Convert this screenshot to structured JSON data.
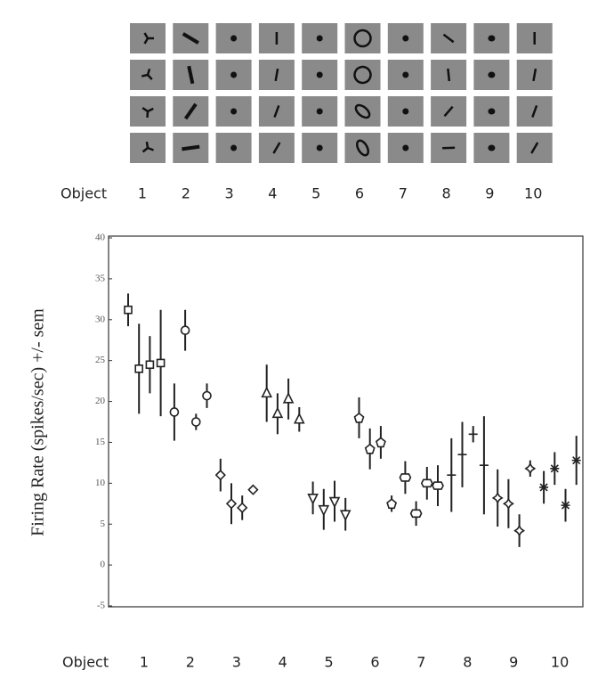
{
  "chart_data": {
    "type": "errorbar",
    "xlabel": "Object",
    "ylabel": "Firing Rate (spikes/sec) +/- sem",
    "categories": [
      "1",
      "2",
      "3",
      "4",
      "5",
      "6",
      "7",
      "8",
      "9",
      "10"
    ],
    "markers": [
      "square",
      "circle",
      "diamond",
      "triangle-up",
      "triangle-down",
      "pentagon",
      "hexagon",
      "plus",
      "star",
      "asterisk"
    ],
    "color": "#222222",
    "values": [
      [
        31.2,
        24,
        24.5,
        24.7
      ],
      [
        18.7,
        28.7,
        17.5,
        20.7
      ],
      [
        11,
        7.5,
        7,
        9.2
      ],
      [
        21,
        18.5,
        20.3,
        17.8
      ],
      [
        8.2,
        6.8,
        7.8,
        6.2
      ],
      [
        18,
        14.2,
        15,
        7.5
      ],
      [
        10.7,
        6.3,
        10,
        9.7
      ],
      [
        11,
        13.5,
        16,
        12.2
      ],
      [
        8.2,
        7.5,
        4.2,
        11.8
      ],
      [
        9.5,
        11.8,
        7.3,
        12.8
      ]
    ],
    "errors": [
      [
        2,
        5.5,
        3.5,
        6.5
      ],
      [
        3.5,
        2.5,
        1,
        1.5
      ],
      [
        2,
        2.5,
        1.5,
        0.5
      ],
      [
        3.5,
        2.5,
        2.5,
        1.5
      ],
      [
        2,
        2.5,
        2.5,
        2
      ],
      [
        2.5,
        2.5,
        2,
        1
      ],
      [
        2,
        1.5,
        2,
        2.5
      ],
      [
        4.5,
        4,
        1,
        6
      ],
      [
        3.5,
        3,
        2,
        1
      ],
      [
        2,
        2,
        2,
        3
      ]
    ],
    "ylim": [
      -5,
      40
    ],
    "yticks": [
      -5,
      0,
      5,
      10,
      15,
      20,
      25,
      30,
      35,
      40
    ]
  }
}
